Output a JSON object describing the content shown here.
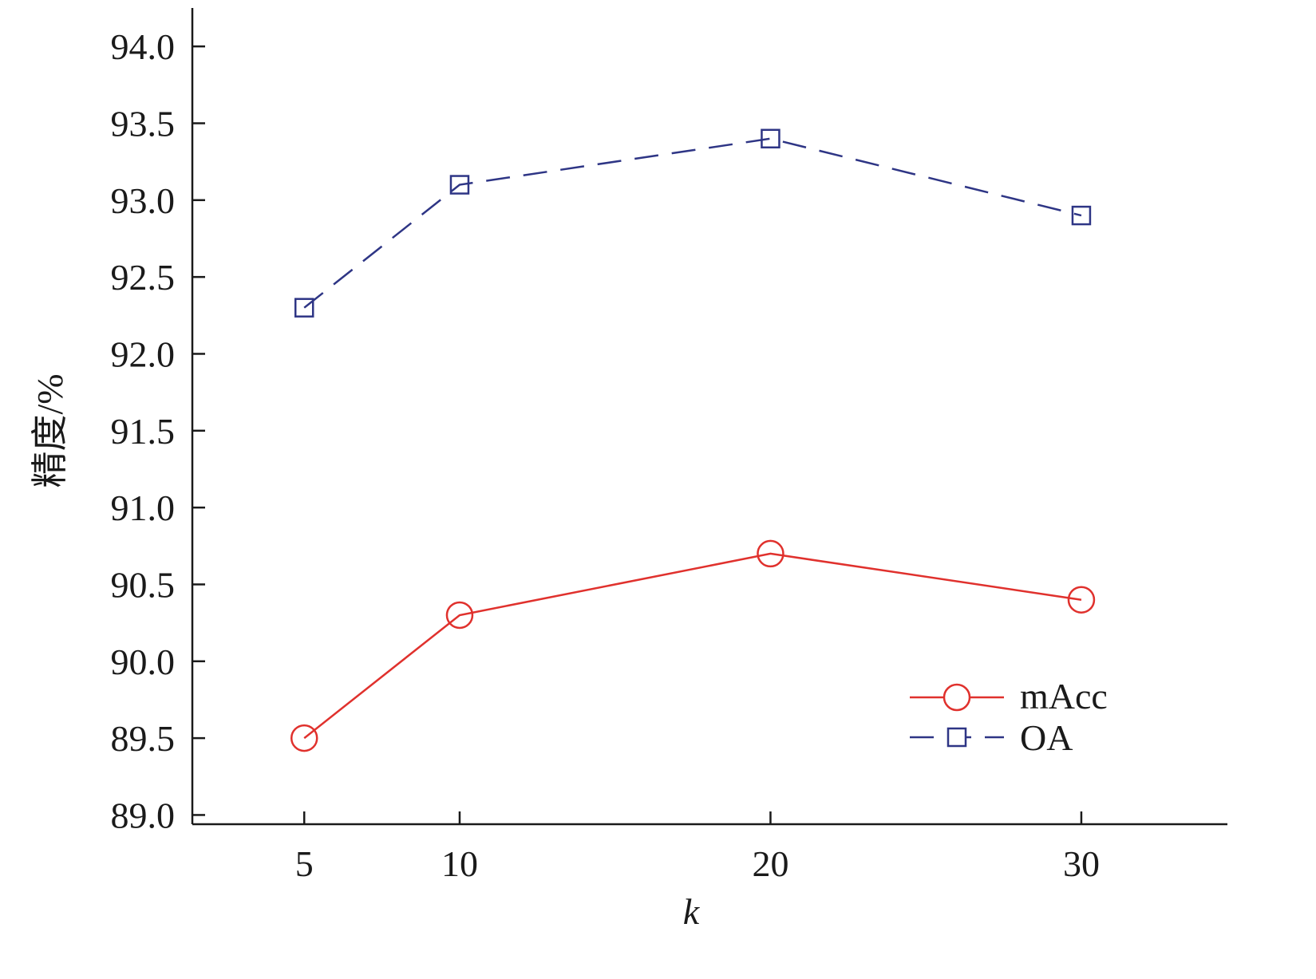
{
  "chart_data": {
    "type": "line",
    "x": [
      5,
      10,
      20,
      30
    ],
    "series": [
      {
        "name": "mAcc",
        "values": [
          89.5,
          90.3,
          90.7,
          90.4
        ],
        "color": "#e0312d",
        "marker": "circle",
        "line_style": "solid"
      },
      {
        "name": "OA",
        "values": [
          92.3,
          93.1,
          93.4,
          92.9
        ],
        "color": "#2e3585",
        "marker": "square",
        "line_style": "dashed"
      }
    ],
    "xlabel": "k",
    "ylabel": "精度/%",
    "xlim": [
      1.4,
      34.7
    ],
    "ylim": [
      88.94,
      94.25
    ],
    "xticks": [
      "5",
      "10",
      "20",
      "30"
    ],
    "yticks": [
      "89.0",
      "89.5",
      "90.0",
      "90.5",
      "91.0",
      "91.5",
      "92.0",
      "92.5",
      "93.0",
      "93.5",
      "94.0"
    ],
    "legend_position": "bottom-right",
    "grid": false
  }
}
